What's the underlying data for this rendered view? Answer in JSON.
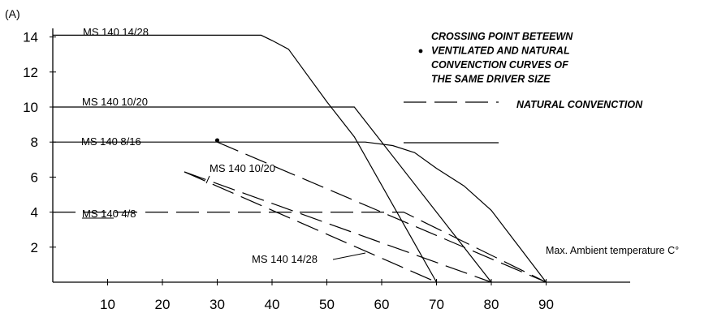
{
  "chart_data": {
    "type": "line",
    "title": "",
    "unit_label": "(A)",
    "xlabel": "Max. Ambient temperature C°",
    "ylabel": "",
    "xlim": [
      0,
      90
    ],
    "ylim": [
      0,
      15
    ],
    "x_ticks": [
      "10",
      "20",
      "30",
      "40",
      "50",
      "60",
      "70",
      "80",
      "90"
    ],
    "y_ticks": [
      "2",
      "4",
      "6",
      "8",
      "10",
      "12",
      "14"
    ],
    "grid": false,
    "series": [
      {
        "name": "MS 140 14/28",
        "style": "solid",
        "points": [
          [
            0,
            14.1
          ],
          [
            38,
            14.1
          ],
          [
            40,
            13.8
          ],
          [
            43,
            13.3
          ],
          [
            50,
            10.3
          ],
          [
            55,
            8.3
          ],
          [
            70,
            0
          ]
        ]
      },
      {
        "name": "MS 140 10/20",
        "style": "solid",
        "points": [
          [
            0,
            10
          ],
          [
            55,
            10
          ],
          [
            80,
            0
          ]
        ]
      },
      {
        "name": "MS 140  8/16",
        "style": "solid",
        "points": [
          [
            0,
            8
          ],
          [
            57,
            8
          ],
          [
            62,
            7.8
          ],
          [
            66,
            7.4
          ],
          [
            70,
            6.5
          ],
          [
            75,
            5.5
          ],
          [
            80,
            4.1
          ],
          [
            90,
            0
          ]
        ]
      },
      {
        "name": "MS 140  4/8",
        "style": "dashed",
        "points": [
          [
            0,
            4
          ],
          [
            64,
            4
          ],
          [
            90,
            0
          ]
        ]
      },
      {
        "name": "MS 140 10/20",
        "style": "dashed",
        "points": [
          [
            24,
            6.3
          ],
          [
            80,
            0
          ]
        ]
      },
      {
        "name": "MS 140 14/28",
        "style": "dashed",
        "points": [
          [
            24,
            6.3
          ],
          [
            70,
            0
          ]
        ]
      },
      {
        "name": "",
        "style": "dashed",
        "points": [
          [
            30,
            8
          ],
          [
            90,
            0
          ]
        ]
      }
    ],
    "crossing_point": {
      "x": 30,
      "y": 8.1
    },
    "annotations": {
      "crossing_legend": [
        "CROSSING POINT BETEEWN",
        "VENTILATED  AND NATURAL",
        "CONVENCTION CURVES OF",
        "THE SAME DRIVER SIZE"
      ],
      "dashed_legend": "NATURAL CONVENCTION"
    }
  }
}
